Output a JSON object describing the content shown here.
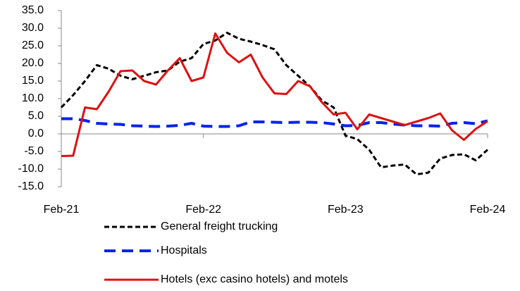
{
  "chart_data": {
    "type": "line",
    "categories": [
      "Feb-21",
      null,
      null,
      null,
      null,
      null,
      null,
      null,
      null,
      null,
      null,
      null,
      "Feb-22",
      null,
      null,
      null,
      null,
      null,
      null,
      null,
      null,
      null,
      null,
      null,
      "Feb-23",
      null,
      null,
      null,
      null,
      null,
      null,
      null,
      null,
      null,
      null,
      null,
      "Feb-24"
    ],
    "ylim": [
      -15,
      35
    ],
    "yticks": [
      {
        "value": -15,
        "label": "-15.0"
      },
      {
        "value": -10,
        "label": "-10.0"
      },
      {
        "value": -5,
        "label": "-5.0"
      },
      {
        "value": 0,
        "label": "0.0"
      },
      {
        "value": 5,
        "label": "5.0"
      },
      {
        "value": 10,
        "label": "10.0"
      },
      {
        "value": 15,
        "label": "15.0"
      },
      {
        "value": 20,
        "label": "20.0"
      },
      {
        "value": 25,
        "label": "25.0"
      },
      {
        "value": 30,
        "label": "30.0"
      },
      {
        "value": 35,
        "label": "35.0"
      }
    ],
    "grid": false,
    "legend": "bottom",
    "series": [
      {
        "name": "General freight trucking",
        "color": "#000000",
        "dash": "short",
        "values": [
          7.5,
          11,
          15,
          19.5,
          18.5,
          16.5,
          15.5,
          16.5,
          17.5,
          18,
          20.5,
          21.5,
          25.5,
          26.5,
          28.7,
          27,
          26.2,
          25.2,
          24,
          19.5,
          16.5,
          13.5,
          9.5,
          7.5,
          -0.5,
          -1.5,
          -4.5,
          -9.5,
          -9,
          -8.7,
          -11.5,
          -11,
          -7,
          -6,
          -5.8,
          -7.5,
          -4.5
        ]
      },
      {
        "name": "Hospitals",
        "color": "#0022ee",
        "dash": "long",
        "values": [
          4.3,
          4.3,
          3.8,
          3,
          2.8,
          2.7,
          2.3,
          2.2,
          2.1,
          2.2,
          2.4,
          3,
          2.2,
          2.1,
          2.1,
          2.3,
          3.4,
          3.4,
          3.3,
          3.2,
          3.3,
          3.3,
          3.2,
          2.8,
          2.3,
          2.4,
          3.2,
          3.2,
          2.8,
          2.5,
          2.3,
          2.3,
          2.2,
          3,
          3.2,
          2.9,
          3.7
        ]
      },
      {
        "name": "Hotels (exc casino hotels) and motels",
        "color": "#dd1111",
        "dash": "solid",
        "values": [
          -6.3,
          -6.2,
          7.5,
          7,
          12,
          17.8,
          18,
          15,
          14,
          18,
          21.5,
          15,
          16,
          28.5,
          23,
          20.3,
          22.5,
          16,
          11.5,
          11.3,
          15,
          13.5,
          9,
          5.5,
          6,
          1.3,
          5.5,
          4.5,
          3.5,
          2.5,
          3.5,
          4.5,
          5.8,
          1,
          -1.7,
          1.4,
          3.6
        ]
      }
    ]
  }
}
